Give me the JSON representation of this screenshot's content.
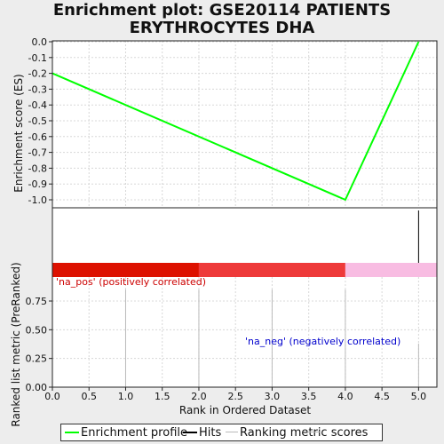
{
  "title_lines": [
    "Enrichment plot: GSE20114 PATIENTS",
    "ERYTHROCYTES DHA"
  ],
  "chart_data": {
    "type": "line",
    "x_range": [
      0,
      5.25
    ],
    "x_ticks": [
      0.0,
      0.5,
      1.0,
      1.5,
      2.0,
      2.5,
      3.0,
      3.5,
      4.0,
      4.5,
      5.0
    ],
    "x_tick_labels": [
      "0.0",
      "0.5",
      "1.0",
      "1.5",
      "2.0",
      "2.5",
      "3.0",
      "3.5",
      "4.0",
      "4.5",
      "5.0"
    ],
    "xlabel": "Rank in Ordered Dataset",
    "es_panel": {
      "ylabel": "Enrichment score (ES)",
      "ylim": [
        -1.05,
        0.0
      ],
      "y_ticks": [
        0.0,
        -0.1,
        -0.2,
        -0.3,
        -0.4,
        -0.5,
        -0.6,
        -0.7,
        -0.8,
        -0.9,
        -1.0
      ],
      "y_tick_labels": [
        "0.0",
        "-0.1",
        "-0.2",
        "-0.3",
        "-0.4",
        "-0.5",
        "-0.6",
        "-0.7",
        "-0.8",
        "-0.9",
        "-1.0"
      ],
      "series": [
        {
          "name": "Enrichment profile",
          "color": "#00ff00",
          "x": [
            0,
            4,
            5
          ],
          "y": [
            -0.2,
            -1.0,
            0.0
          ]
        }
      ]
    },
    "hits": {
      "name": "Hits",
      "color": "#000000",
      "x": [
        5
      ]
    },
    "heatmap_bar": {
      "segments": [
        {
          "from": 0,
          "to": 2,
          "color": "#dd1100"
        },
        {
          "from": 2,
          "to": 4,
          "color": "#ee3a3a"
        },
        {
          "from": 4,
          "to": 5.25,
          "color": "#f8bce2"
        }
      ]
    },
    "rank_panel": {
      "ylabel": "Ranked list metric (PreRanked)",
      "ylim": [
        0.0,
        0.95
      ],
      "y_ticks": [
        0.0,
        0.25,
        0.5,
        0.75
      ],
      "y_tick_labels": [
        "0.00",
        "0.25",
        "0.50",
        "0.75"
      ],
      "series": [
        {
          "name": "Ranking metric scores",
          "color": "#bbbbbb",
          "x": [
            1,
            2,
            3,
            4,
            5
          ],
          "y": [
            0.85,
            0.85,
            0.85,
            0.85,
            0.38
          ]
        }
      ],
      "annotations": [
        {
          "text": "'na_pos' (positively correlated)",
          "color": "#cc0000"
        },
        {
          "text": "'na_neg' (negatively correlated)",
          "color": "#0000cc"
        }
      ]
    },
    "legend": [
      {
        "label": "Enrichment profile",
        "color": "#00ff00"
      },
      {
        "label": "Hits",
        "color": "#000000"
      },
      {
        "label": "Ranking metric scores",
        "color": "#bbbbbb"
      }
    ]
  }
}
